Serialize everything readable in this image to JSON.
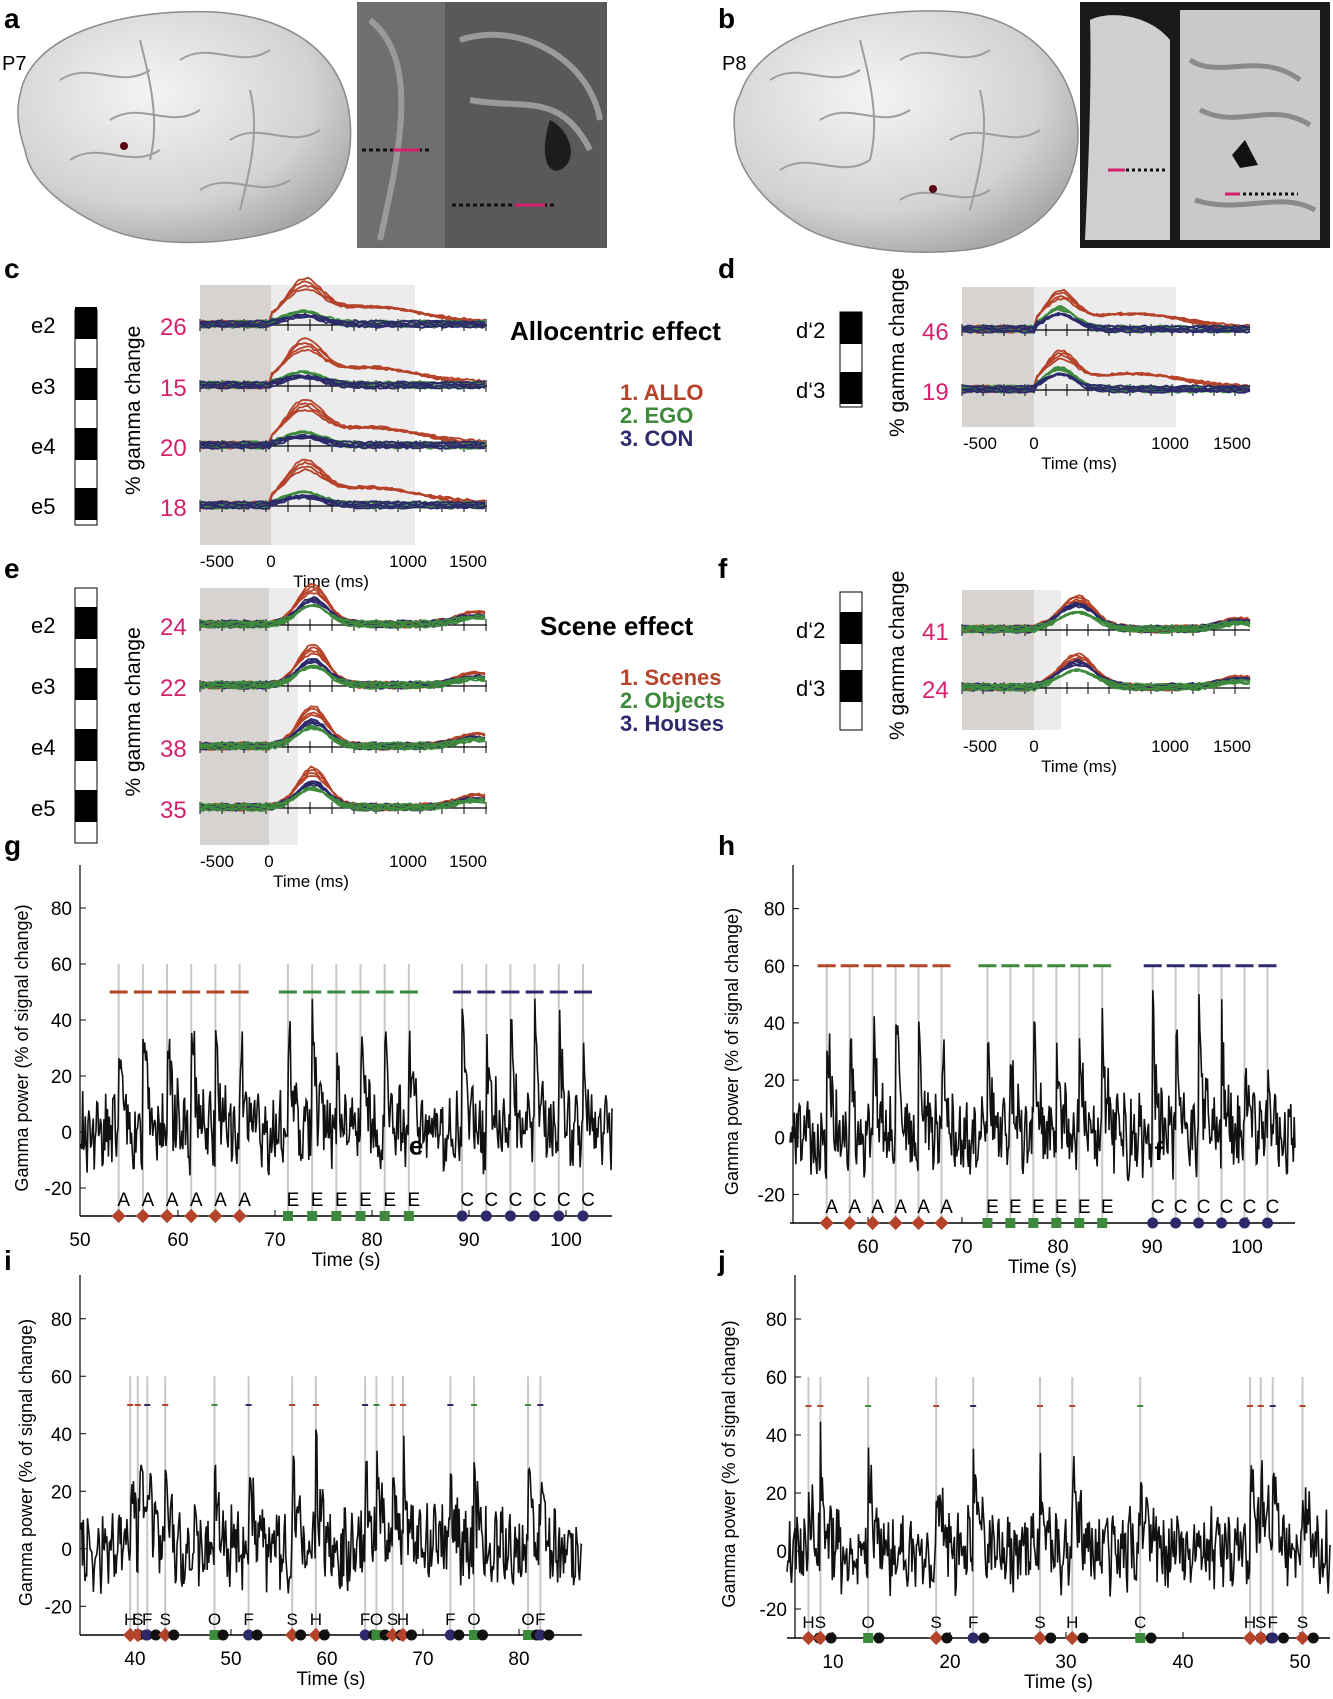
{
  "panels": {
    "a": {
      "label": "a",
      "subject": "P7"
    },
    "b": {
      "label": "b",
      "subject": "P8"
    },
    "c": {
      "label": "c",
      "electrodes": [
        "e2",
        "e3",
        "e4",
        "e5"
      ],
      "scales": [
        "26",
        "15",
        "20",
        "18"
      ],
      "ylabel": "% gamma change",
      "xticks": [
        "-500",
        "0",
        "1000",
        "1500"
      ],
      "xlabel": "Time (ms)"
    },
    "d": {
      "label": "d",
      "electrodes": [
        "d‘2",
        "d‘3"
      ],
      "scales": [
        "46",
        "19"
      ],
      "ylabel": "% gamma change",
      "xticks": [
        "-500",
        "0",
        "1000",
        "1500"
      ],
      "xlabel": "Time (ms)"
    },
    "e": {
      "label": "e",
      "electrodes": [
        "e2",
        "e3",
        "e4",
        "e5"
      ],
      "scales": [
        "24",
        "22",
        "38",
        "35"
      ],
      "ylabel": "% gamma change",
      "xticks": [
        "-500",
        "0",
        "1000",
        "1500"
      ],
      "xlabel": "Time (ms)"
    },
    "f": {
      "label": "f",
      "electrodes": [
        "d‘2",
        "d‘3"
      ],
      "scales": [
        "41",
        "24"
      ],
      "ylabel": "% gamma change",
      "xticks": [
        "-500",
        "0",
        "1000",
        "1500"
      ],
      "xlabel": "Time (ms)"
    },
    "g": {
      "label": "g"
    },
    "h": {
      "label": "h"
    },
    "i": {
      "label": "i"
    },
    "j": {
      "label": "j"
    }
  },
  "allocentric": {
    "title": "Allocentric effect",
    "legend": [
      "1. ALLO",
      "2. EGO",
      "3. CON"
    ]
  },
  "scene": {
    "title": "Scene effect",
    "legend": [
      "1. Scenes",
      "2. Objects",
      "3. Houses"
    ]
  },
  "colors": {
    "red": "#b5432a",
    "green": "#3e8a3c",
    "blue": "#2d2a6b",
    "magenta": "#d6206e"
  },
  "chart_data": [
    {
      "panel": "g",
      "type": "line",
      "xlabel": "Time (s)",
      "ylabel": "Gamma power (% of signal change)",
      "xlim": [
        50,
        105
      ],
      "ylim": [
        -30,
        90
      ],
      "xticks": [
        "50",
        "60",
        "70",
        "80",
        "90",
        "100"
      ],
      "yticks": [
        "-20",
        "0",
        "20",
        "40",
        "60",
        "80"
      ],
      "markers": [
        {
          "letter": "A",
          "x": 54
        },
        {
          "letter": "A",
          "x": 56.5
        },
        {
          "letter": "A",
          "x": 59
        },
        {
          "letter": "A",
          "x": 61.5
        },
        {
          "letter": "A",
          "x": 64
        },
        {
          "letter": "A",
          "x": 66.5
        },
        {
          "letter": "E",
          "x": 71.5
        },
        {
          "letter": "E",
          "x": 74
        },
        {
          "letter": "E",
          "x": 76.5
        },
        {
          "letter": "E",
          "x": 79
        },
        {
          "letter": "E",
          "x": 81.5
        },
        {
          "letter": "E",
          "x": 84
        },
        {
          "letter": "C",
          "x": 89.5
        },
        {
          "letter": "C",
          "x": 92
        },
        {
          "letter": "C",
          "x": 94.5
        },
        {
          "letter": "C",
          "x": 97
        },
        {
          "letter": "C",
          "x": 99.5
        },
        {
          "letter": "C",
          "x": 102
        }
      ],
      "annotation": "e"
    },
    {
      "panel": "h",
      "type": "line",
      "xlabel": "Time (s)",
      "ylabel": "Gamma power (% of signal change)",
      "xlim": [
        50,
        105
      ],
      "ylim": [
        -30,
        90
      ],
      "xticks": [
        "60",
        "70",
        "80",
        "90",
        "100"
      ],
      "yticks": [
        "-20",
        "0",
        "20",
        "40",
        "60",
        "80"
      ],
      "markers": [
        {
          "letter": "A",
          "x": 54
        },
        {
          "letter": "A",
          "x": 56.5
        },
        {
          "letter": "A",
          "x": 59
        },
        {
          "letter": "A",
          "x": 61.5
        },
        {
          "letter": "A",
          "x": 64
        },
        {
          "letter": "A",
          "x": 66.5
        },
        {
          "letter": "E",
          "x": 71.5
        },
        {
          "letter": "E",
          "x": 74
        },
        {
          "letter": "E",
          "x": 76.5
        },
        {
          "letter": "E",
          "x": 79
        },
        {
          "letter": "E",
          "x": 81.5
        },
        {
          "letter": "E",
          "x": 84
        },
        {
          "letter": "C",
          "x": 89.5
        },
        {
          "letter": "C",
          "x": 92
        },
        {
          "letter": "C",
          "x": 94.5
        },
        {
          "letter": "C",
          "x": 97
        },
        {
          "letter": "C",
          "x": 99.5
        },
        {
          "letter": "C",
          "x": 102
        }
      ],
      "annotation": "f"
    },
    {
      "panel": "i",
      "type": "line",
      "xlabel": "Time (s)",
      "ylabel": "Gamma power (% of signal change)",
      "xlim": [
        34,
        87
      ],
      "ylim": [
        -30,
        90
      ],
      "xticks": [
        "40",
        "50",
        "60",
        "70",
        "80"
      ],
      "yticks": [
        "-20",
        "0",
        "20",
        "40",
        "60",
        "80"
      ],
      "letters": [
        {
          "t": "H",
          "x": 39.3
        },
        {
          "t": "S",
          "x": 40.1
        },
        {
          "t": "F",
          "x": 41.1
        },
        {
          "t": "S",
          "x": 43
        },
        {
          "t": "O",
          "x": 48.2
        },
        {
          "t": "F",
          "x": 51.8
        },
        {
          "t": "S",
          "x": 56.4
        },
        {
          "t": "H",
          "x": 58.9
        },
        {
          "t": "F",
          "x": 64.1
        },
        {
          "t": "O",
          "x": 65.3
        },
        {
          "t": "S",
          "x": 67
        },
        {
          "t": "H",
          "x": 68.1
        },
        {
          "t": "F",
          "x": 73.1
        },
        {
          "t": "O",
          "x": 75.6
        },
        {
          "t": "O",
          "x": 81.3
        },
        {
          "t": "F",
          "x": 82.6
        }
      ]
    },
    {
      "panel": "j",
      "type": "line",
      "xlabel": "Time (s)",
      "ylabel": "Gamma power (% of signal change)",
      "xlim": [
        7,
        52.5
      ],
      "ylim": [
        -30,
        90
      ],
      "xticks": [
        "10",
        "20",
        "30",
        "40",
        "50"
      ],
      "yticks": [
        "-20",
        "0",
        "20",
        "40",
        "60",
        "80"
      ],
      "letters": [
        {
          "t": "H",
          "x": 8.8
        },
        {
          "t": "S",
          "x": 9.8
        },
        {
          "t": "O",
          "x": 13.8
        },
        {
          "t": "S",
          "x": 19.5
        },
        {
          "t": "F",
          "x": 22.6
        },
        {
          "t": "S",
          "x": 28.2
        },
        {
          "t": "H",
          "x": 30.9
        },
        {
          "t": "C",
          "x": 36.6
        },
        {
          "t": "H",
          "x": 45.8
        },
        {
          "t": "S",
          "x": 46.7
        },
        {
          "t": "F",
          "x": 47.7
        },
        {
          "t": "S",
          "x": 50.2
        }
      ]
    }
  ]
}
